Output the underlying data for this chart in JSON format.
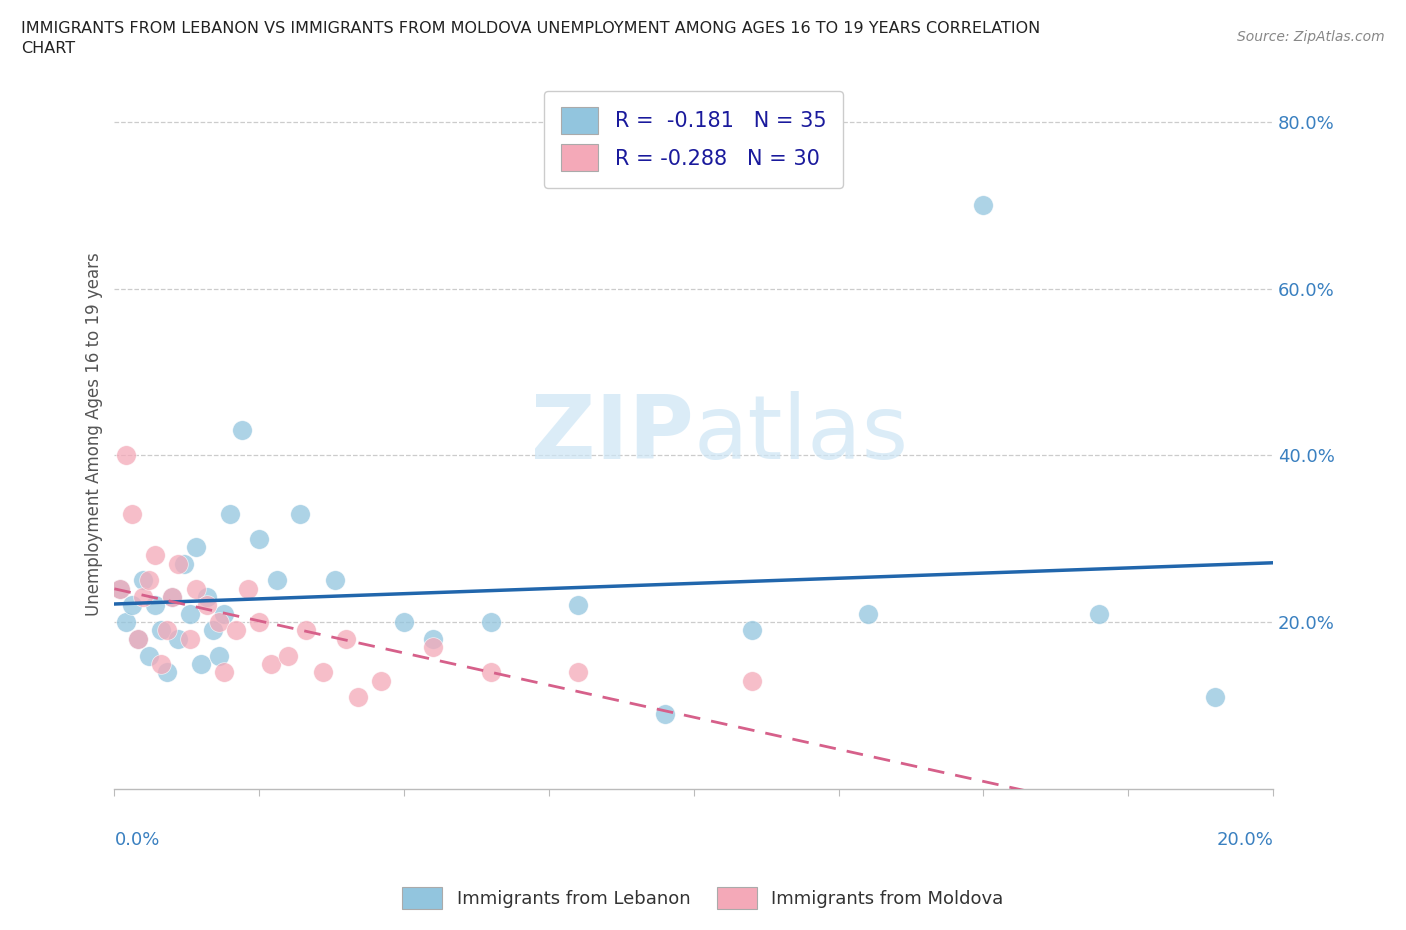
{
  "title_line1": "IMMIGRANTS FROM LEBANON VS IMMIGRANTS FROM MOLDOVA UNEMPLOYMENT AMONG AGES 16 TO 19 YEARS CORRELATION",
  "title_line2": "CHART",
  "source": "Source: ZipAtlas.com",
  "ylabel": "Unemployment Among Ages 16 to 19 years",
  "color_lebanon": "#92C5DE",
  "color_moldova": "#F4A9B8",
  "color_line_lebanon": "#2166AC",
  "color_line_moldova": "#D6608A",
  "watermark_color": "#cce5f5",
  "right_ytick_vals": [
    0.2,
    0.4,
    0.6,
    0.8
  ],
  "right_ytick_labels": [
    "20.0%",
    "40.0%",
    "60.0%",
    "80.0%"
  ],
  "grid_color": "#cccccc",
  "xmin": 0.0,
  "xmax": 0.2,
  "ymin": 0.0,
  "ymax": 0.85,
  "legend_label1": "R =  -0.181   N = 35",
  "legend_label2": "R = -0.288   N = 30",
  "bottom_label1": "Immigrants from Lebanon",
  "bottom_label2": "Immigrants from Moldova",
  "tick_label_color": "#3a80c0",
  "lebanon_x": [
    0.001,
    0.002,
    0.003,
    0.004,
    0.005,
    0.006,
    0.007,
    0.008,
    0.009,
    0.01,
    0.011,
    0.012,
    0.013,
    0.014,
    0.015,
    0.016,
    0.017,
    0.018,
    0.019,
    0.02,
    0.022,
    0.025,
    0.028,
    0.032,
    0.038,
    0.05,
    0.055,
    0.065,
    0.08,
    0.095,
    0.11,
    0.13,
    0.15,
    0.17,
    0.19
  ],
  "lebanon_y": [
    0.24,
    0.2,
    0.22,
    0.18,
    0.25,
    0.16,
    0.22,
    0.19,
    0.14,
    0.23,
    0.18,
    0.27,
    0.21,
    0.29,
    0.15,
    0.23,
    0.19,
    0.16,
    0.21,
    0.33,
    0.43,
    0.3,
    0.25,
    0.33,
    0.25,
    0.2,
    0.18,
    0.2,
    0.22,
    0.09,
    0.19,
    0.21,
    0.7,
    0.21,
    0.11
  ],
  "moldova_x": [
    0.001,
    0.002,
    0.003,
    0.004,
    0.005,
    0.006,
    0.007,
    0.008,
    0.009,
    0.01,
    0.011,
    0.013,
    0.014,
    0.016,
    0.018,
    0.019,
    0.021,
    0.023,
    0.025,
    0.027,
    0.03,
    0.033,
    0.036,
    0.04,
    0.042,
    0.046,
    0.055,
    0.065,
    0.08,
    0.11
  ],
  "moldova_y": [
    0.24,
    0.4,
    0.33,
    0.18,
    0.23,
    0.25,
    0.28,
    0.15,
    0.19,
    0.23,
    0.27,
    0.18,
    0.24,
    0.22,
    0.2,
    0.14,
    0.19,
    0.24,
    0.2,
    0.15,
    0.16,
    0.19,
    0.14,
    0.18,
    0.11,
    0.13,
    0.17,
    0.14,
    0.14,
    0.13
  ]
}
